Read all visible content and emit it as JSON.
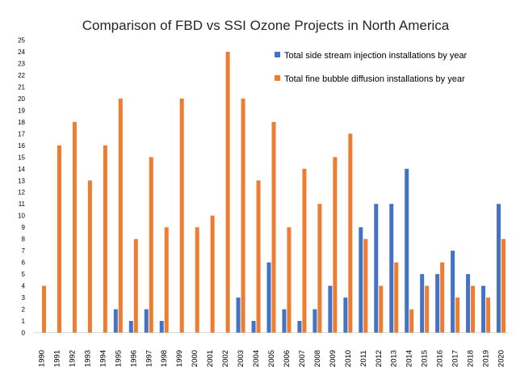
{
  "chart_data": {
    "type": "bar",
    "title": "Comparison of FBD vs SSI Ozone Projects in North America",
    "xlabel": "",
    "ylabel": "",
    "ylim": [
      0,
      25
    ],
    "yticks": [
      "0",
      "1",
      "2",
      "3",
      "4",
      "5",
      "6",
      "7",
      "8",
      "9",
      "10",
      "11",
      "12",
      "13",
      "14",
      "15",
      "16",
      "17",
      "18",
      "19",
      "20",
      "21",
      "22",
      "23",
      "24",
      "25"
    ],
    "grid": false,
    "legend_position": "top-right",
    "categories": [
      "1990",
      "1991",
      "1992",
      "1993",
      "1994",
      "1995",
      "1996",
      "1997",
      "1998",
      "1999",
      "2000",
      "2001",
      "2002",
      "2003",
      "2004",
      "2005",
      "2006",
      "2007",
      "2008",
      "2009",
      "2010",
      "2011",
      "2012",
      "2013",
      "2014",
      "2015",
      "2016",
      "2017",
      "2018",
      "2019",
      "2020"
    ],
    "series": [
      {
        "name": "Total side stream injection installations by year",
        "color": "#4472C4",
        "values": [
          0,
          0,
          0,
          0,
          0,
          2,
          1,
          2,
          1,
          0,
          0,
          0,
          0,
          3,
          1,
          6,
          2,
          1,
          2,
          4,
          3,
          9,
          11,
          11,
          14,
          5,
          5,
          7,
          5,
          4,
          11
        ]
      },
      {
        "name": "Total fine bubble diffusion installations by year",
        "color": "#ED7D31",
        "values": [
          4,
          16,
          18,
          13,
          16,
          20,
          8,
          15,
          9,
          20,
          9,
          10,
          24,
          20,
          13,
          18,
          9,
          14,
          11,
          15,
          17,
          8,
          4,
          6,
          2,
          4,
          6,
          3,
          4,
          3,
          8
        ]
      }
    ]
  }
}
